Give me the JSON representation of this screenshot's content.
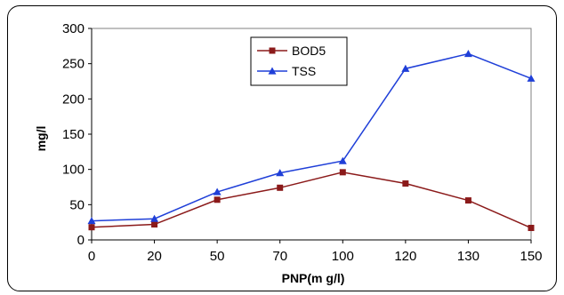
{
  "chart_data": {
    "type": "line",
    "title": "",
    "xlabel": "PNP(m g/l)",
    "ylabel": "mg/l",
    "categories": [
      "0",
      "20",
      "50",
      "70",
      "100",
      "120",
      "130",
      "150"
    ],
    "ylim": [
      0,
      300
    ],
    "yticks": [
      "0",
      "50",
      "100",
      "150",
      "200",
      "250",
      "300"
    ],
    "grid": false,
    "legend_position": "top-center",
    "series": [
      {
        "name": "BOD5",
        "color": "#8B1A1A",
        "marker": "square",
        "values": [
          18,
          22,
          57,
          74,
          96,
          80,
          56,
          17
        ]
      },
      {
        "name": "TSS",
        "color": "#1F3FD8",
        "marker": "triangle",
        "values": [
          27,
          30,
          68,
          95,
          112,
          243,
          264,
          229
        ]
      }
    ]
  }
}
